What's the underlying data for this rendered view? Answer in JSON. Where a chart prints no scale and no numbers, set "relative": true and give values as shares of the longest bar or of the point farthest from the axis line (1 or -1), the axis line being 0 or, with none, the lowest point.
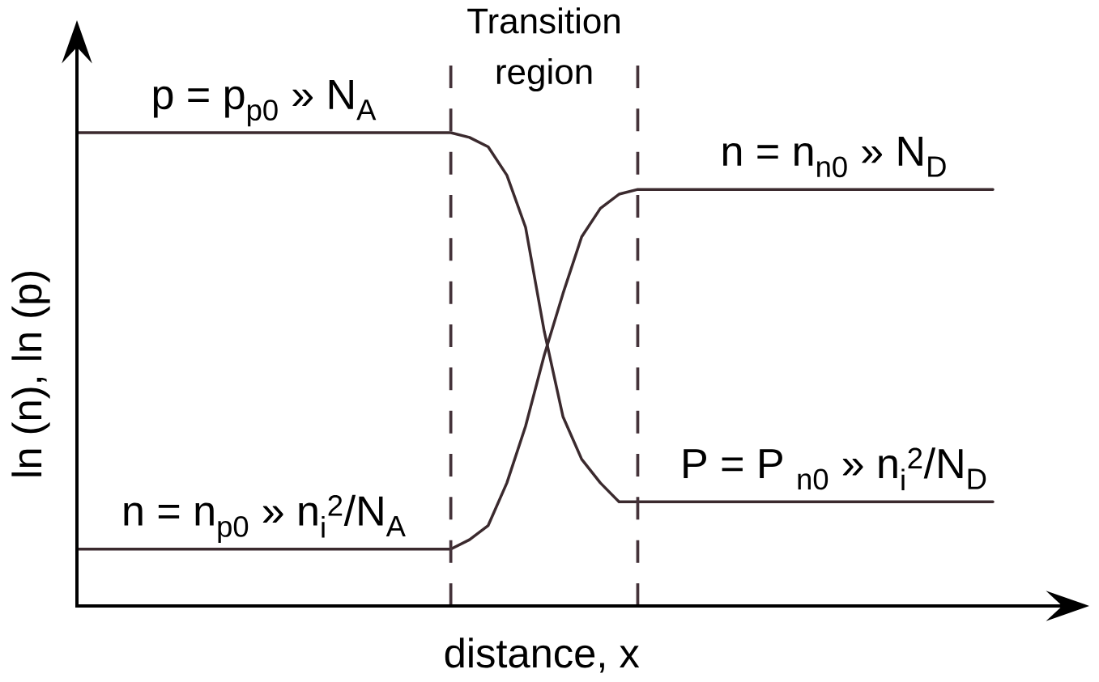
{
  "chart_data": {
    "type": "line",
    "relative": true,
    "xlabel": "distance, x",
    "ylabel": "ln (n), ln (p)",
    "categories": [
      null,
      null,
      null,
      null,
      null,
      null,
      null,
      null,
      null,
      null,
      null,
      null,
      null,
      null,
      null,
      null,
      null,
      null,
      null,
      null,
      null,
      null,
      null,
      null,
      null,
      null,
      null,
      null,
      null,
      null,
      null,
      null,
      null,
      null,
      null,
      null,
      null,
      null,
      null,
      null,
      null,
      null,
      null,
      null,
      null,
      null,
      null,
      null,
      null,
      null
    ],
    "series": [
      {
        "color": "#3b2a2e",
        "values": [
          1,
          1,
          1,
          1,
          1,
          1,
          1,
          1,
          1,
          1,
          1,
          1,
          1,
          1,
          1,
          1,
          1,
          1,
          1,
          1,
          1,
          0.99,
          0.97,
          0.91,
          0.8,
          0.58,
          0.4,
          0.31,
          0.26,
          0.22,
          0.22,
          0.22,
          0.22,
          0.22,
          0.22,
          0.22,
          0.22,
          0.22,
          0.22,
          0.22,
          0.22,
          0.22,
          0.22,
          0.22,
          0.22,
          0.22,
          0.22,
          0.22,
          0.22,
          0.22
        ]
      },
      {
        "color": "#3b2a2e",
        "values": [
          0.12,
          0.12,
          0.12,
          0.12,
          0.12,
          0.12,
          0.12,
          0.12,
          0.12,
          0.12,
          0.12,
          0.12,
          0.12,
          0.12,
          0.12,
          0.12,
          0.12,
          0.12,
          0.12,
          0.12,
          0.12,
          0.14,
          0.17,
          0.26,
          0.38,
          0.53,
          0.66,
          0.78,
          0.84,
          0.87,
          0.88,
          0.88,
          0.88,
          0.88,
          0.88,
          0.88,
          0.88,
          0.88,
          0.88,
          0.88,
          0.88,
          0.88,
          0.88,
          0.88,
          0.88,
          0.88,
          0.88,
          0.88,
          0.88,
          0.88
        ]
      }
    ],
    "annotations": [
      {
        "text": "p = p$_{p0}$ » N$_{A}$",
        "y": 1
      },
      {
        "text": "n = n$_{n0}$ » N$_{D}$",
        "y": 0.88
      },
      {
        "text": "n = n$_{p0}$ » n$_{i}$$^{2}$/N$_{A}$",
        "y": 0.12
      },
      {
        "text": "P = P $_{n0}$ » n$_{i}$$^{2}$/N$_{D}$",
        "y": 0.22
      },
      "Transition region"
    ],
    "marker": "none",
    "line_style": "solid"
  }
}
